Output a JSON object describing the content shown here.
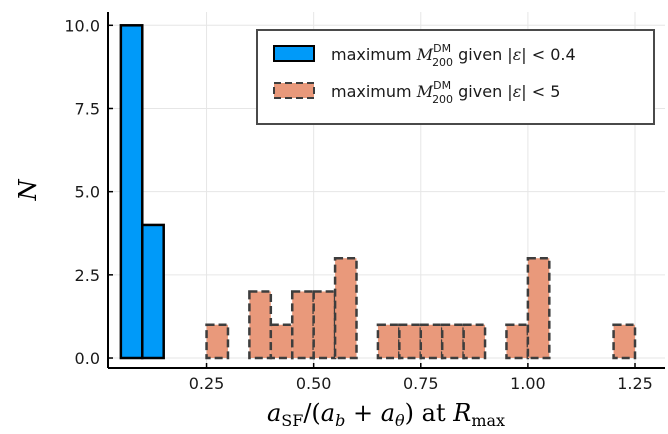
{
  "chart_data": {
    "type": "bar",
    "xlabel_parts": {
      "a": "a",
      "sf": "SF",
      "slash_open": "/(",
      "b": "b",
      "plus": " + ",
      "theta": "θ",
      "close_at": ") at ",
      "R": "R",
      "max": "max"
    },
    "ylabel": "N",
    "xlim": [
      0.02,
      1.32
    ],
    "ylim": [
      -0.3,
      10.4
    ],
    "xticks": [
      0.25,
      0.5,
      0.75,
      1.0,
      1.25
    ],
    "xtick_labels": [
      "0.25",
      "0.50",
      "0.75",
      "1.00",
      "1.25"
    ],
    "yticks": [
      0,
      2.5,
      5,
      7.5,
      10
    ],
    "ytick_labels": [
      "0.0",
      "2.5",
      "5.0",
      "7.5",
      "10.0"
    ],
    "grid": true,
    "legend_position": "top-right",
    "series": [
      {
        "legend_parts": {
          "pre": "maximum ",
          "M": "M",
          "sup": "DM",
          "sub": "200",
          "post": " given |",
          "eps": "ε",
          "cond": "| < 0.4"
        },
        "color": "#009af9",
        "edge": "#000000",
        "style": "solid",
        "bins": [
          {
            "x0": 0.05,
            "x1": 0.1,
            "count": 10
          },
          {
            "x0": 0.1,
            "x1": 0.15,
            "count": 4
          }
        ]
      },
      {
        "legend_parts": {
          "pre": "maximum ",
          "M": "M",
          "sup": "DM",
          "sub": "200",
          "post": " given |",
          "eps": "ε",
          "cond": "| < 5"
        },
        "color": "#e9997b",
        "edge": "#3d3d3d",
        "style": "dashed",
        "bins": [
          {
            "x0": 0.25,
            "x1": 0.3,
            "count": 1
          },
          {
            "x0": 0.3,
            "x1": 0.35,
            "count": 0
          },
          {
            "x0": 0.35,
            "x1": 0.4,
            "count": 2
          },
          {
            "x0": 0.4,
            "x1": 0.45,
            "count": 1
          },
          {
            "x0": 0.45,
            "x1": 0.5,
            "count": 2
          },
          {
            "x0": 0.5,
            "x1": 0.55,
            "count": 2
          },
          {
            "x0": 0.55,
            "x1": 0.6,
            "count": 3
          },
          {
            "x0": 0.6,
            "x1": 0.65,
            "count": 0
          },
          {
            "x0": 0.65,
            "x1": 0.7,
            "count": 1
          },
          {
            "x0": 0.7,
            "x1": 0.75,
            "count": 1
          },
          {
            "x0": 0.75,
            "x1": 0.8,
            "count": 1
          },
          {
            "x0": 0.8,
            "x1": 0.85,
            "count": 1
          },
          {
            "x0": 0.85,
            "x1": 0.9,
            "count": 1
          },
          {
            "x0": 0.9,
            "x1": 0.95,
            "count": 0
          },
          {
            "x0": 0.95,
            "x1": 1.0,
            "count": 1
          },
          {
            "x0": 1.0,
            "x1": 1.05,
            "count": 3
          },
          {
            "x0": 1.05,
            "x1": 1.1,
            "count": 0
          },
          {
            "x0": 1.1,
            "x1": 1.15,
            "count": 0
          },
          {
            "x0": 1.15,
            "x1": 1.2,
            "count": 0
          },
          {
            "x0": 1.2,
            "x1": 1.25,
            "count": 1
          }
        ]
      }
    ]
  }
}
